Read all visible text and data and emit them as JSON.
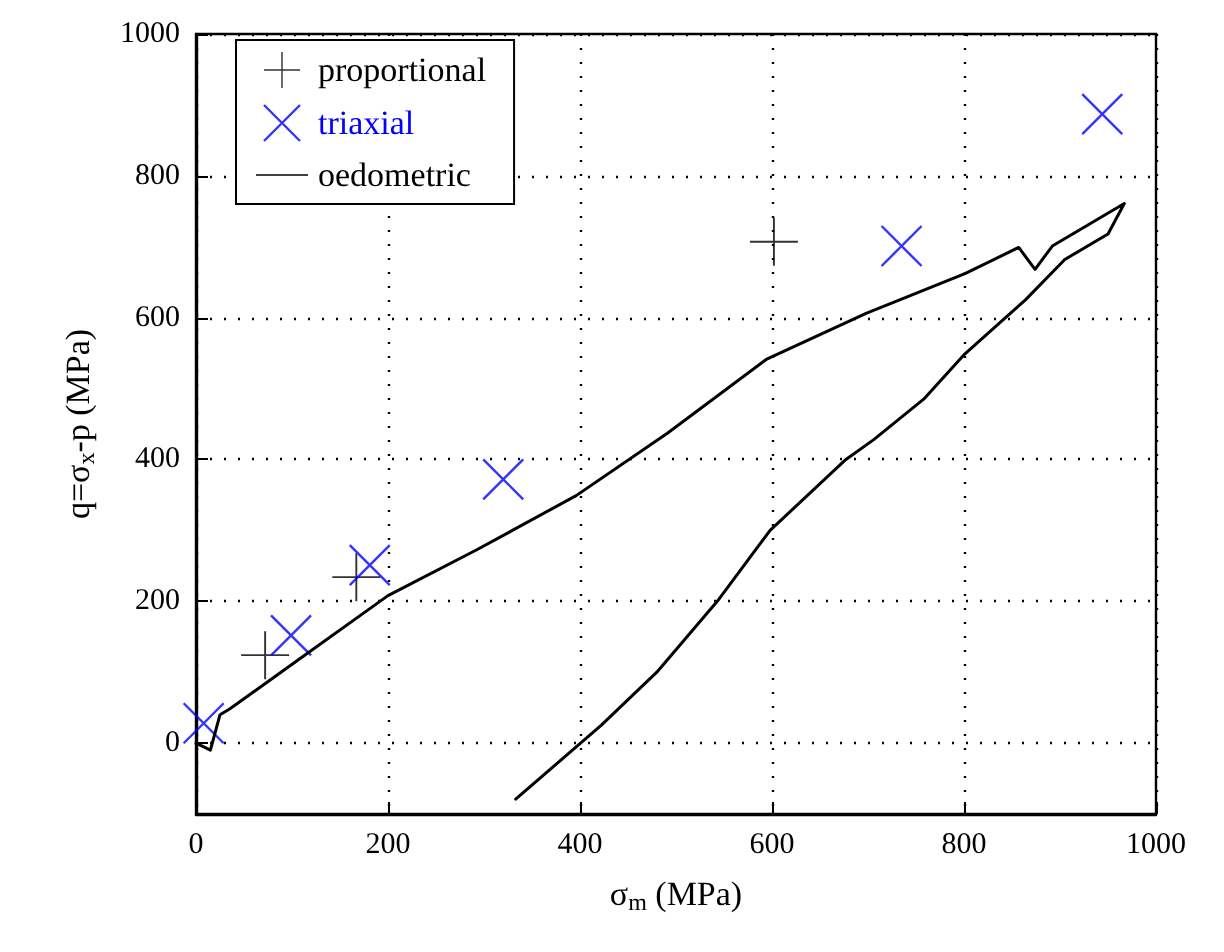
{
  "chart_data": {
    "type": "scatter",
    "xlabel": "σ$_{m}$ (MPa)",
    "ylabel": "q=σ$_{x}$-p (MPa)",
    "xlim": [
      0,
      1000
    ],
    "xticks": [
      0,
      200,
      400,
      600,
      800,
      1000
    ],
    "ylim": [
      -100,
      1000
    ],
    "yticks": [
      0,
      200,
      400,
      600,
      800,
      1000
    ],
    "grid": true,
    "legend": "top left",
    "series": [
      {
        "name": "proportional",
        "color": "#000000",
        "x": [
          72,
          167,
          602
        ],
        "values": [
          124,
          234,
          707
        ]
      },
      {
        "name": "triaxial",
        "marker": "cross",
        "color": "#0000ff",
        "x": [
          8,
          99,
          181,
          320,
          735,
          944
        ],
        "values": [
          28,
          152,
          251,
          372,
          701,
          887
        ]
      },
      {
        "name": "oedometric",
        "type": "line",
        "marker": "none",
        "line_style": "solid",
        "color": "#000000",
        "x": [
          0,
          15,
          25,
          35,
          107,
          200,
          293,
          396,
          491,
          594,
          698,
          801,
          857,
          874,
          892,
          967,
          950,
          905,
          864,
          801,
          758,
          706,
          677,
          598,
          543,
          480,
          422,
          333
        ],
        "values": [
          0,
          -10,
          40,
          48,
          118,
          208,
          273,
          349,
          437,
          541,
          606,
          662,
          699,
          668,
          701,
          761,
          718,
          682,
          625,
          549,
          485,
          428,
          400,
          300,
          200,
          100,
          25,
          -79
        ]
      }
    ]
  }
}
